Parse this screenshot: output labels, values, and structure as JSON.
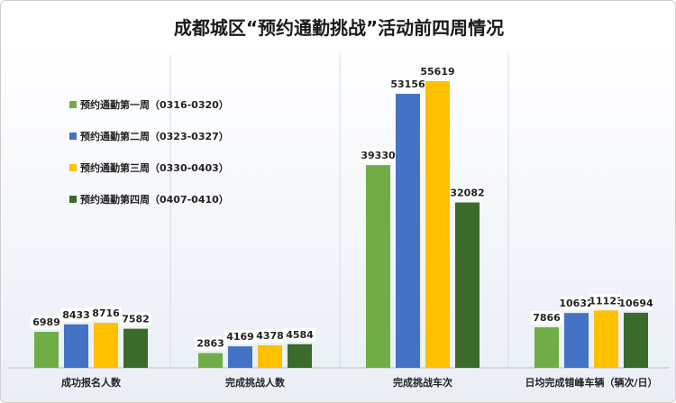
{
  "chart_data": {
    "type": "bar",
    "title": "成都城区“预约通勤挑战”活动前四周情况",
    "categories": [
      "成功报名人数",
      "完成挑战人数",
      "完成挑战车次",
      "日均完成错峰车辆（辆次/日）"
    ],
    "series": [
      {
        "name": "预约通勤第一周（0316-0320）",
        "color": "#70ad47",
        "values": [
          6989,
          2863,
          39330,
          7866
        ]
      },
      {
        "name": "预约通勤第二周（0323-0327）",
        "color": "#4472c4",
        "values": [
          8433,
          4169,
          53156,
          10632
        ]
      },
      {
        "name": "预约通勤第三周（0330-0403）",
        "color": "#ffc000",
        "values": [
          8716,
          4378,
          55619,
          11123
        ]
      },
      {
        "name": "预约通勤第四周（0407-0410）",
        "color": "#3b6b2a",
        "values": [
          7582,
          4584,
          32082,
          10694
        ]
      }
    ],
    "ylim": [
      0,
      60000
    ],
    "grid": true,
    "legend": "top-left"
  }
}
